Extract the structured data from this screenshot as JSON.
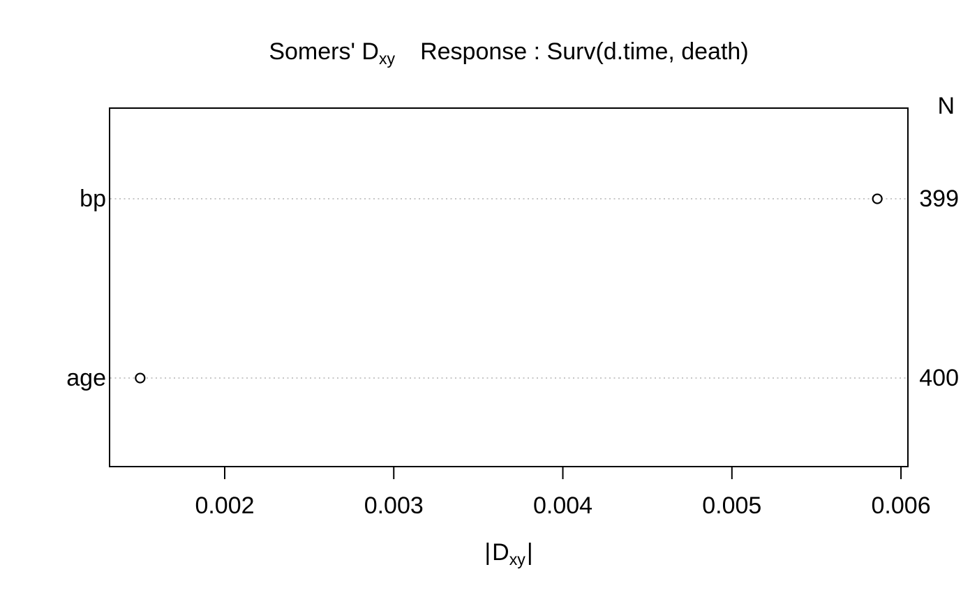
{
  "colors": {
    "background": "#ffffff",
    "text": "#000000",
    "frame": "#000000",
    "reference_line": "#b4b4b4",
    "point_stroke": "#000000",
    "point_fill": "#ffffff"
  },
  "title": {
    "prefix": "Somers' D",
    "sub": "xy",
    "response": "Response : Surv(d.time, death)"
  },
  "xaxis_label": {
    "open": "|",
    "base": "D",
    "sub": "xy",
    "close": "|"
  },
  "chart_data": {
    "type": "scatter",
    "variant": "horizontal dot chart with open-circle markers and dotted reference lines",
    "title": "Somers' Dxy    Response : Surv(d.time, death)",
    "xlabel": "|Dxy|",
    "ylabel": "",
    "categories": [
      "bp",
      "age"
    ],
    "values": [
      0.00586,
      0.0015
    ],
    "aux": {
      "header": "N",
      "values": [
        "399",
        "400"
      ]
    },
    "xlim": [
      0.001319,
      0.006041
    ],
    "xticks": [
      0.002,
      0.003,
      0.004,
      0.005,
      0.006
    ],
    "xtick_labels": [
      "0.002",
      "0.003",
      "0.004",
      "0.005",
      "0.006"
    ],
    "grid": "dotted horizontal reference line per category, full plot width",
    "legend": "none"
  }
}
